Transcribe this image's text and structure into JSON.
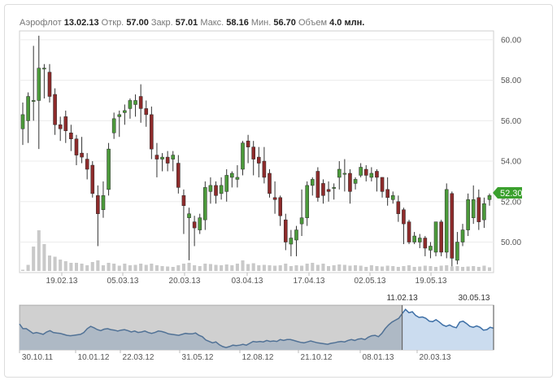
{
  "summary": {
    "ticker": "Аэрофлот",
    "date": "13.02.13",
    "open_label": "Откр.",
    "open": "57.00",
    "close_label": "Закр.",
    "close": "57.01",
    "high_label": "Макс.",
    "high": "58.16",
    "low_label": "Мин.",
    "low": "56.70",
    "volume_label": "Объем",
    "volume": "4.0 млн."
  },
  "last_price_badge": "52.30",
  "colors": {
    "up": "#4c9a3b",
    "down": "#8e2b2b",
    "volume": "#c9c9c9",
    "badge": "#3aa02d",
    "nav_line": "#3d6fa6",
    "nav_fill": "#cbdcef"
  },
  "chart_data": [
    {
      "type": "candlestick",
      "ylim": [
        48.4,
        60.4
      ],
      "y_ticks": [
        "50.00",
        "52.00",
        "54.00",
        "56.00",
        "58.00",
        "60.00"
      ],
      "x_tick_labels": [
        "19.02.13",
        "05.03.13",
        "20.03.13",
        "03.04.13",
        "17.04.13",
        "02.05.13",
        "19.05.13"
      ],
      "grid": true,
      "ohlc": [
        [
          55.6,
          56.3,
          54.8,
          56.9
        ],
        [
          56.0,
          57.2,
          54.9,
          57.4
        ],
        [
          57.0,
          57.0,
          56.0,
          59.7
        ],
        [
          57.0,
          58.6,
          54.6,
          60.2
        ],
        [
          58.6,
          58.6,
          57.1,
          58.8
        ],
        [
          58.4,
          57.2,
          56.9,
          58.8
        ],
        [
          57.3,
          55.8,
          55.3,
          57.6
        ],
        [
          55.8,
          55.6,
          55.0,
          56.2
        ],
        [
          56.2,
          55.5,
          54.9,
          56.5
        ],
        [
          55.4,
          55.1,
          54.5,
          55.8
        ],
        [
          55.1,
          54.3,
          53.8,
          55.3
        ],
        [
          54.4,
          54.2,
          53.9,
          55.2
        ],
        [
          54.1,
          53.6,
          53.1,
          54.4
        ],
        [
          53.8,
          52.4,
          52.2,
          54.0
        ],
        [
          52.3,
          51.4,
          49.8,
          52.8
        ],
        [
          51.6,
          52.3,
          51.2,
          53.0
        ],
        [
          52.6,
          54.6,
          52.3,
          54.9
        ],
        [
          55.4,
          56.1,
          55.1,
          56.4
        ],
        [
          56.2,
          56.3,
          55.2,
          56.5
        ],
        [
          56.4,
          56.5,
          55.8,
          56.8
        ],
        [
          56.6,
          57.0,
          56.1,
          57.1
        ],
        [
          56.8,
          57.0,
          56.2,
          57.3
        ],
        [
          57.2,
          56.6,
          55.9,
          57.8
        ],
        [
          56.6,
          56.3,
          55.7,
          57.0
        ],
        [
          56.3,
          54.6,
          54.1,
          56.7
        ],
        [
          54.3,
          54.1,
          53.2,
          54.9
        ],
        [
          54.1,
          54.2,
          53.5,
          54.4
        ],
        [
          54.2,
          53.9,
          53.5,
          54.5
        ],
        [
          54.1,
          54.3,
          53.5,
          54.5
        ],
        [
          53.9,
          52.7,
          52.4,
          54.3
        ],
        [
          52.3,
          51.8,
          50.4,
          52.6
        ],
        [
          51.2,
          51.4,
          49.1,
          51.7
        ],
        [
          51.0,
          50.7,
          49.8,
          51.3
        ],
        [
          50.6,
          51.2,
          50.4,
          51.4
        ],
        [
          51.1,
          52.7,
          50.6,
          53.0
        ],
        [
          52.5,
          52.8,
          51.9,
          53.2
        ],
        [
          52.8,
          52.3,
          51.9,
          53.0
        ],
        [
          52.4,
          52.8,
          52.1,
          53.2
        ],
        [
          52.5,
          53.3,
          52.0,
          53.6
        ],
        [
          53.2,
          53.4,
          52.7,
          53.5
        ],
        [
          53.1,
          53.2,
          52.7,
          53.8
        ],
        [
          53.6,
          54.9,
          53.3,
          55.0
        ],
        [
          55.0,
          54.7,
          53.9,
          55.3
        ],
        [
          54.7,
          54.1,
          53.3,
          55.0
        ],
        [
          54.2,
          53.9,
          53.2,
          54.7
        ],
        [
          54.0,
          53.2,
          52.9,
          54.7
        ],
        [
          53.4,
          52.4,
          52.2,
          53.6
        ],
        [
          52.2,
          52.1,
          51.4,
          53.0
        ],
        [
          52.2,
          51.3,
          50.8,
          52.3
        ],
        [
          51.1,
          50.0,
          49.6,
          51.4
        ],
        [
          49.9,
          50.2,
          49.3,
          50.6
        ],
        [
          50.1,
          50.6,
          49.3,
          50.8
        ],
        [
          50.9,
          51.2,
          50.3,
          52.6
        ],
        [
          51.2,
          52.8,
          50.8,
          53.0
        ],
        [
          52.8,
          53.1,
          52.3,
          53.2
        ],
        [
          53.5,
          52.2,
          52.0,
          53.7
        ],
        [
          52.9,
          52.3,
          51.9,
          53.1
        ],
        [
          52.6,
          52.5,
          52.0,
          53.0
        ],
        [
          52.7,
          52.7,
          52.1,
          52.9
        ],
        [
          53.2,
          53.6,
          52.6,
          54.0
        ],
        [
          53.4,
          53.4,
          52.5,
          54.1
        ],
        [
          53.4,
          52.5,
          51.9,
          53.6
        ],
        [
          52.9,
          53.1,
          52.6,
          53.2
        ],
        [
          53.3,
          53.7,
          53.2,
          53.9
        ],
        [
          53.6,
          53.3,
          53.0,
          53.8
        ],
        [
          53.2,
          53.4,
          53.0,
          53.7
        ],
        [
          53.5,
          53.2,
          52.5,
          53.6
        ],
        [
          53.2,
          52.5,
          52.2,
          53.2
        ],
        [
          52.6,
          52.2,
          51.8,
          53.2
        ],
        [
          52.1,
          52.3,
          51.9,
          52.5
        ],
        [
          52.0,
          51.4,
          51.0,
          52.3
        ],
        [
          51.6,
          50.9,
          49.9,
          51.7
        ],
        [
          51.0,
          50.0,
          49.9,
          51.1
        ],
        [
          50.0,
          50.3,
          49.9,
          50.5
        ],
        [
          50.0,
          50.2,
          49.7,
          50.4
        ],
        [
          50.2,
          49.7,
          49.3,
          50.3
        ],
        [
          49.6,
          49.8,
          49.2,
          50.0
        ],
        [
          49.5,
          51.0,
          49.3,
          51.0
        ],
        [
          51.0,
          49.5,
          49.3,
          51.1
        ],
        [
          49.5,
          52.6,
          49.2,
          52.9
        ],
        [
          52.4,
          49.2,
          48.8,
          52.5
        ],
        [
          49.1,
          50.0,
          48.9,
          50.5
        ],
        [
          50.0,
          50.6,
          49.8,
          50.9
        ],
        [
          50.6,
          52.1,
          50.3,
          52.4
        ],
        [
          51.2,
          52.1,
          50.9,
          52.8
        ],
        [
          52.2,
          51.0,
          50.6,
          52.6
        ],
        [
          51.1,
          51.9,
          50.7,
          52.2
        ],
        [
          52.1,
          52.3,
          51.8,
          52.4
        ]
      ],
      "volume": [
        3,
        15,
        60,
        100,
        66,
        38,
        35,
        28,
        24,
        20,
        20,
        18,
        14,
        22,
        26,
        14,
        20,
        18,
        13,
        18,
        14,
        15,
        18,
        15,
        18,
        14,
        12,
        11,
        10,
        14,
        18,
        20,
        14,
        12,
        18,
        17,
        15,
        14,
        16,
        14,
        18,
        26,
        17,
        19,
        14,
        15,
        14,
        13,
        14,
        18,
        12,
        14,
        13,
        18,
        20,
        15,
        18,
        12,
        14,
        16,
        15,
        13,
        14,
        13,
        10,
        14,
        12,
        11,
        13,
        12,
        10,
        12,
        14,
        10,
        11,
        13,
        12,
        10,
        13,
        14,
        11,
        12,
        10,
        11,
        12,
        10,
        13,
        9
      ]
    },
    {
      "type": "area",
      "x_tick_labels": [
        "30.10.11",
        "10.01.12",
        "22.03.12",
        "31.05.12",
        "12.08.12",
        "21.10.12",
        "08.01.13",
        "20.03.13"
      ],
      "window_labels": [
        "11.02.13",
        "30.05.13"
      ],
      "values": [
        52,
        51,
        51,
        50.5,
        50,
        50.2,
        50,
        49.8,
        50.3,
        50.6,
        50.2,
        50.1,
        50,
        49.8,
        49.6,
        49.5,
        49.6,
        49.7,
        49.8,
        50.2,
        51,
        51.5,
        51.2,
        50.8,
        50.6,
        50.9,
        51,
        50.8,
        50.7,
        50.5,
        50.7,
        50.8,
        50.6,
        50.3,
        50.5,
        50.2,
        50.3,
        50.5,
        50.2,
        50,
        50.2,
        50.5,
        50.4,
        50.2,
        49.9,
        49.8,
        49.7,
        49.6,
        49.8,
        50,
        49.9,
        49.9,
        50.1,
        49.6,
        49.3,
        48.6,
        48.3,
        48,
        48.2,
        47.6,
        47.2,
        47,
        47.2,
        47.5,
        47.4,
        47.5,
        47.7,
        47.5,
        47.9,
        48.3,
        48.2,
        48.3,
        48.2,
        48.5,
        48.3,
        48.4,
        48.3,
        48.7,
        48.5,
        48.7,
        48.7,
        48.5,
        48.3,
        48.1,
        48,
        48.2,
        48.4,
        48.2,
        48,
        47.9,
        47.8,
        47.7,
        47.9,
        48,
        48.2,
        48.3,
        48.2,
        48.5,
        48.7,
        48.5,
        48.8,
        48.9,
        48.7,
        49.2,
        49.5,
        49.6,
        49.3,
        50,
        51,
        51.8,
        52.4,
        52.8,
        53.2,
        54.2,
        55.1,
        54.4,
        54.6,
        53.8,
        53.4,
        53.5,
        53.2,
        52.6,
        52.5,
        52.9,
        52.4,
        51.8,
        51.5,
        51.8,
        51.4,
        51.2,
        52.4,
        52.6,
        52.1,
        51.5,
        51.3,
        51.6,
        51.3,
        50.7,
        50.8,
        51.3,
        51.1
      ],
      "selected_from_index": 113
    }
  ]
}
